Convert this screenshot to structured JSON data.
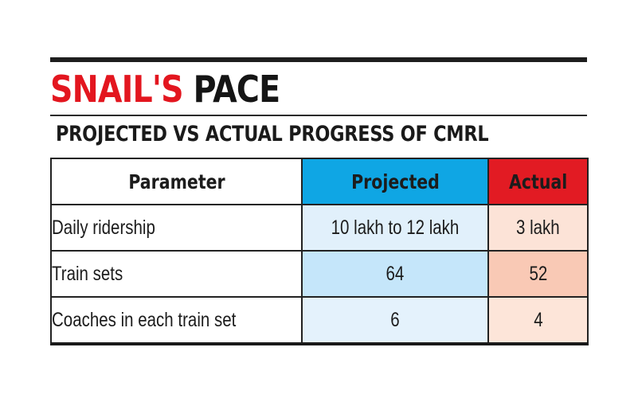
{
  "headline": {
    "red_part": "SNAIL'S",
    "black_part": "PACE"
  },
  "subheadline": "PROJECTED VS ACTUAL PROGRESS OF CMRL",
  "colors": {
    "headline_red": "#e3161f",
    "projected_header": "#0fa6e4",
    "actual_header": "#e21b23",
    "projected_cell_light": "#e1f0fb",
    "projected_cell_dark": "#c5e6fa",
    "actual_cell_light": "#fce3d7",
    "actual_cell_dark": "#f9c9b5"
  },
  "table": {
    "headers": [
      "Parameter",
      "Projected",
      "Actual"
    ],
    "rows": [
      {
        "parameter": "Daily ridership",
        "projected": "10 lakh to 12 lakh",
        "actual": "3 lakh"
      },
      {
        "parameter": "Train sets",
        "projected": "64",
        "actual": "52"
      },
      {
        "parameter": "Coaches in each train set",
        "projected": "6",
        "actual": "4"
      }
    ]
  }
}
